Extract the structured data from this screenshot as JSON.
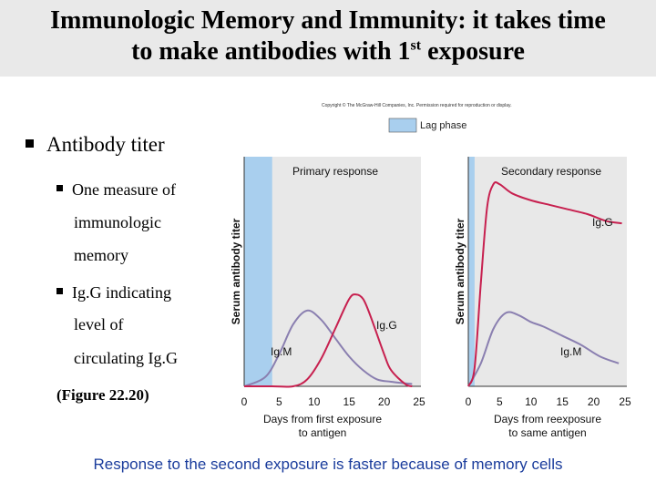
{
  "title": {
    "line1": "Immunologic Memory and Immunity: it takes time",
    "line2_pre": "to make antibodies with 1",
    "line2_sup": "st",
    "line2_post": " exposure"
  },
  "copyright": "Copyright © The McGraw-Hill Companies, Inc. Permission required for reproduction or display.",
  "bullets": {
    "main": "Antibody titer",
    "sub1_l1": "One measure of",
    "sub1_l2": "immunologic",
    "sub1_l3": "memory",
    "sub2_l1": "Ig.G indicating",
    "sub2_l2": "level of",
    "sub2_l3": "circulating Ig.G",
    "figure": "(Figure 22.20)"
  },
  "legend": {
    "lag_phase": "Lag phase"
  },
  "colors": {
    "lag": "#a9cfee",
    "igg": "#c7204f",
    "igm": "#8a7fb0",
    "footer": "#1a3c9c",
    "panel": "#e8e8e8"
  },
  "chart_data": [
    {
      "type": "line",
      "title": "Primary response",
      "xlabel": "Days from first exposure to antigen",
      "ylabel": "Serum antibody titer",
      "xlim": [
        0,
        25
      ],
      "ylim": [
        0,
        100
      ],
      "xticks": [
        "0",
        "5",
        "10",
        "15",
        "20",
        "25"
      ],
      "lag_phase_days": [
        0,
        4
      ],
      "series": [
        {
          "name": "Ig.M",
          "x": [
            0,
            3,
            5,
            7,
            9,
            11,
            13,
            15,
            17,
            19,
            21,
            24
          ],
          "values": [
            0,
            4,
            14,
            27,
            33,
            29,
            21,
            13,
            7,
            3,
            2,
            1
          ]
        },
        {
          "name": "Ig.G",
          "x": [
            0,
            4,
            7,
            9,
            11,
            13,
            15,
            16,
            17,
            18,
            20,
            21,
            23,
            24
          ],
          "values": [
            0,
            0,
            0,
            3,
            12,
            25,
            38,
            40,
            38,
            31,
            14,
            7,
            1,
            0
          ]
        }
      ]
    },
    {
      "type": "line",
      "title": "Secondary response",
      "xlabel": "Days from reexposure to same antigen",
      "ylabel": "Serum antibody titer",
      "xlim": [
        0,
        25
      ],
      "ylim": [
        0,
        100
      ],
      "xticks": [
        "0",
        "5",
        "10",
        "15",
        "20",
        "25"
      ],
      "lag_phase_days": [
        0,
        1
      ],
      "series": [
        {
          "name": "Ig.M",
          "x": [
            0,
            2,
            4,
            6,
            8,
            10,
            12,
            15,
            18,
            21,
            24
          ],
          "values": [
            0,
            10,
            25,
            32,
            31,
            28,
            26,
            22,
            18,
            13,
            10
          ]
        },
        {
          "name": "Ig.G",
          "x": [
            0,
            1,
            2,
            3,
            4,
            5,
            7,
            10,
            13,
            16,
            19,
            22,
            24.5
          ],
          "values": [
            0,
            8,
            45,
            78,
            88,
            88,
            84,
            81,
            79,
            77,
            75,
            72,
            71
          ]
        }
      ]
    }
  ],
  "footer": "Response to the second exposure is faster because of memory cells"
}
